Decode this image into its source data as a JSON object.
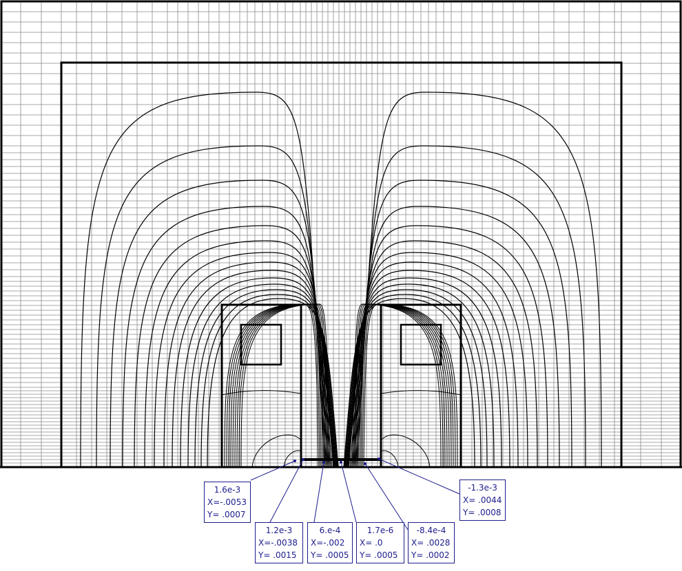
{
  "colors": {
    "background": "#ffffff",
    "mesh": "#8a8a8a",
    "outline": "#000000",
    "contour": "#000000",
    "probe": "#1c1c8c"
  },
  "probes": [
    {
      "value": "1.6e-3",
      "x": "X=-.0053",
      "y": "Y= .0007"
    },
    {
      "value": "1.2e-3",
      "x": "X=-.0038",
      "y": "Y= .0015"
    },
    {
      "value": "6.e-4",
      "x": "X=-.002",
      "y": "Y= .0005"
    },
    {
      "value": "1.7e-6",
      "x": "X= .0",
      "y": "Y= .0005"
    },
    {
      "value": "-8.4e-4",
      "x": "X= .0028",
      "y": "Y= .0002"
    },
    {
      "value": "-1.3e-3",
      "x": "X= .0044",
      "y": "Y= .0008"
    }
  ]
}
